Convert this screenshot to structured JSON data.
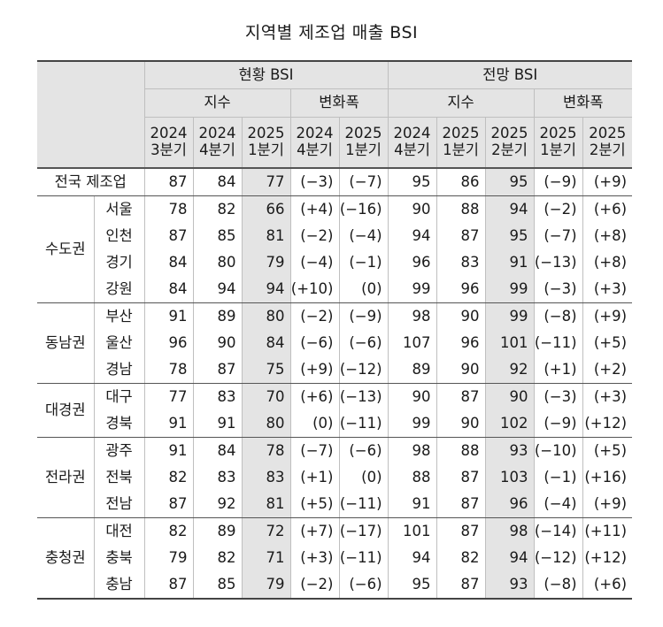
{
  "title": "지역별 제조업 매출 BSI",
  "headers": {
    "current": "현황 BSI",
    "outlook": "전망 BSI",
    "index": "지수",
    "change": "변화폭",
    "current_index_periods": [
      [
        "2024",
        "3분기"
      ],
      [
        "2024",
        "4분기"
      ],
      [
        "2025",
        "1분기"
      ]
    ],
    "current_change_periods": [
      [
        "2024",
        "4분기"
      ],
      [
        "2025",
        "1분기"
      ]
    ],
    "outlook_index_periods": [
      [
        "2024",
        "4분기"
      ],
      [
        "2025",
        "1분기"
      ],
      [
        "2025",
        "2분기"
      ]
    ],
    "outlook_change_periods": [
      [
        "2025",
        "1분기"
      ],
      [
        "2025",
        "2분기"
      ]
    ]
  },
  "national": {
    "label": "전국 제조업",
    "values": [
      "87",
      "84",
      "77",
      "(−3)",
      "(−7)",
      "95",
      "86",
      "95",
      "(−9)",
      "(+9)"
    ]
  },
  "groups": [
    {
      "name": "수도권",
      "rows": [
        {
          "region": "서울",
          "values": [
            "78",
            "82",
            "66",
            "(+4)",
            "(−16)",
            "90",
            "88",
            "94",
            "(−2)",
            "(+6)"
          ]
        },
        {
          "region": "인천",
          "values": [
            "87",
            "85",
            "81",
            "(−2)",
            "(−4)",
            "94",
            "87",
            "95",
            "(−7)",
            "(+8)"
          ]
        },
        {
          "region": "경기",
          "values": [
            "84",
            "80",
            "79",
            "(−4)",
            "(−1)",
            "96",
            "83",
            "91",
            "(−13)",
            "(+8)"
          ]
        },
        {
          "region": "강원",
          "values": [
            "84",
            "94",
            "94",
            "(+10)",
            "(0)",
            "99",
            "96",
            "99",
            "(−3)",
            "(+3)"
          ]
        }
      ]
    },
    {
      "name": "동남권",
      "rows": [
        {
          "region": "부산",
          "values": [
            "91",
            "89",
            "80",
            "(−2)",
            "(−9)",
            "98",
            "90",
            "99",
            "(−8)",
            "(+9)"
          ]
        },
        {
          "region": "울산",
          "values": [
            "96",
            "90",
            "84",
            "(−6)",
            "(−6)",
            "107",
            "96",
            "101",
            "(−11)",
            "(+5)"
          ]
        },
        {
          "region": "경남",
          "values": [
            "78",
            "87",
            "75",
            "(+9)",
            "(−12)",
            "89",
            "90",
            "92",
            "(+1)",
            "(+2)"
          ]
        }
      ]
    },
    {
      "name": "대경권",
      "rows": [
        {
          "region": "대구",
          "values": [
            "77",
            "83",
            "70",
            "(+6)",
            "(−13)",
            "90",
            "87",
            "90",
            "(−3)",
            "(+3)"
          ]
        },
        {
          "region": "경북",
          "values": [
            "91",
            "91",
            "80",
            "(0)",
            "(−11)",
            "99",
            "90",
            "102",
            "(−9)",
            "(+12)"
          ]
        }
      ]
    },
    {
      "name": "전라권",
      "rows": [
        {
          "region": "광주",
          "values": [
            "91",
            "84",
            "78",
            "(−7)",
            "(−6)",
            "98",
            "88",
            "93",
            "(−10)",
            "(+5)"
          ]
        },
        {
          "region": "전북",
          "values": [
            "82",
            "83",
            "83",
            "(+1)",
            "(0)",
            "88",
            "87",
            "103",
            "(−1)",
            "(+16)"
          ]
        },
        {
          "region": "전남",
          "values": [
            "87",
            "92",
            "81",
            "(+5)",
            "(−11)",
            "91",
            "87",
            "96",
            "(−4)",
            "(+9)"
          ]
        }
      ]
    },
    {
      "name": "충청권",
      "rows": [
        {
          "region": "대전",
          "values": [
            "82",
            "89",
            "72",
            "(+7)",
            "(−17)",
            "101",
            "87",
            "98",
            "(−14)",
            "(+11)"
          ]
        },
        {
          "region": "충북",
          "values": [
            "79",
            "82",
            "71",
            "(+3)",
            "(−11)",
            "94",
            "82",
            "94",
            "(−12)",
            "(+12)"
          ]
        },
        {
          "region": "충남",
          "values": [
            "87",
            "85",
            "79",
            "(−2)",
            "(−6)",
            "95",
            "87",
            "93",
            "(−8)",
            "(+6)"
          ]
        }
      ]
    }
  ]
}
